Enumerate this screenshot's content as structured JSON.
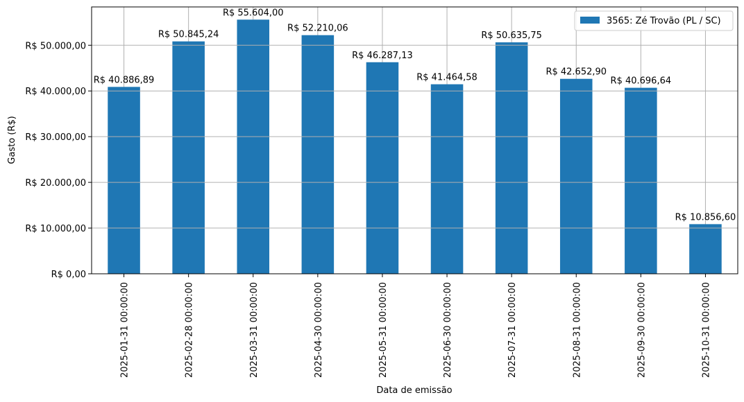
{
  "chart_data": {
    "type": "bar",
    "categories": [
      "2025-01-31 00:00:00",
      "2025-02-28 00:00:00",
      "2025-03-31 00:00:00",
      "2025-04-30 00:00:00",
      "2025-05-31 00:00:00",
      "2025-06-30 00:00:00",
      "2025-07-31 00:00:00",
      "2025-08-31 00:00:00",
      "2025-09-30 00:00:00",
      "2025-10-31 00:00:00"
    ],
    "series": [
      {
        "name": "3565: Zé Trovão (PL / SC)",
        "color": "#1f77b4",
        "values": [
          40886.89,
          50845.24,
          55604.0,
          52210.06,
          46287.13,
          41464.58,
          50635.75,
          42652.9,
          40696.64,
          10856.6
        ]
      }
    ],
    "data_labels": [
      "R$ 40.886,89",
      "R$ 50.845,24",
      "R$ 55.604,00",
      "R$ 52.210,06",
      "R$ 46.287,13",
      "R$ 41.464,58",
      "R$ 50.635,75",
      "R$ 42.652,90",
      "R$ 40.696,64",
      "R$ 10.856,60"
    ],
    "y_ticks": [
      0,
      10000,
      20000,
      30000,
      40000,
      50000
    ],
    "y_tick_labels": [
      "R$ 0,00",
      "R$ 10.000,00",
      "R$ 20.000,00",
      "R$ 30.000,00",
      "R$ 40.000,00",
      "R$ 50.000,00"
    ],
    "ylim": [
      0,
      58384
    ],
    "xlabel": "Data de emissão",
    "ylabel": "Gasto (R$)",
    "grid": true,
    "legend_position": "top-right"
  }
}
